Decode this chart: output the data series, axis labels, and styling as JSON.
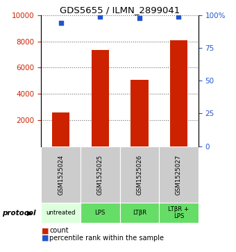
{
  "title": "GDS5655 / ILMN_2899041",
  "samples": [
    "GSM1525024",
    "GSM1525025",
    "GSM1525026",
    "GSM1525027"
  ],
  "protocols": [
    "untreated",
    "LPS",
    "LTβR",
    "LTβR +\nLPS"
  ],
  "counts": [
    2550,
    7350,
    5050,
    8100
  ],
  "percentile_ranks": [
    94,
    99,
    98,
    99
  ],
  "ylim_left": [
    0,
    10000
  ],
  "ylim_right": [
    0,
    100
  ],
  "yticks_left": [
    2000,
    4000,
    6000,
    8000,
    10000
  ],
  "yticks_right": [
    0,
    25,
    50,
    75,
    100
  ],
  "bar_color": "#cc2200",
  "dot_color": "#2255cc",
  "sample_box_color": "#cccccc",
  "protocol_box_color_1": "#ddffdd",
  "protocol_box_color_2": "#66dd66",
  "label_count": "count",
  "label_percentile": "percentile rank within the sample",
  "protocol_label": "protocol"
}
